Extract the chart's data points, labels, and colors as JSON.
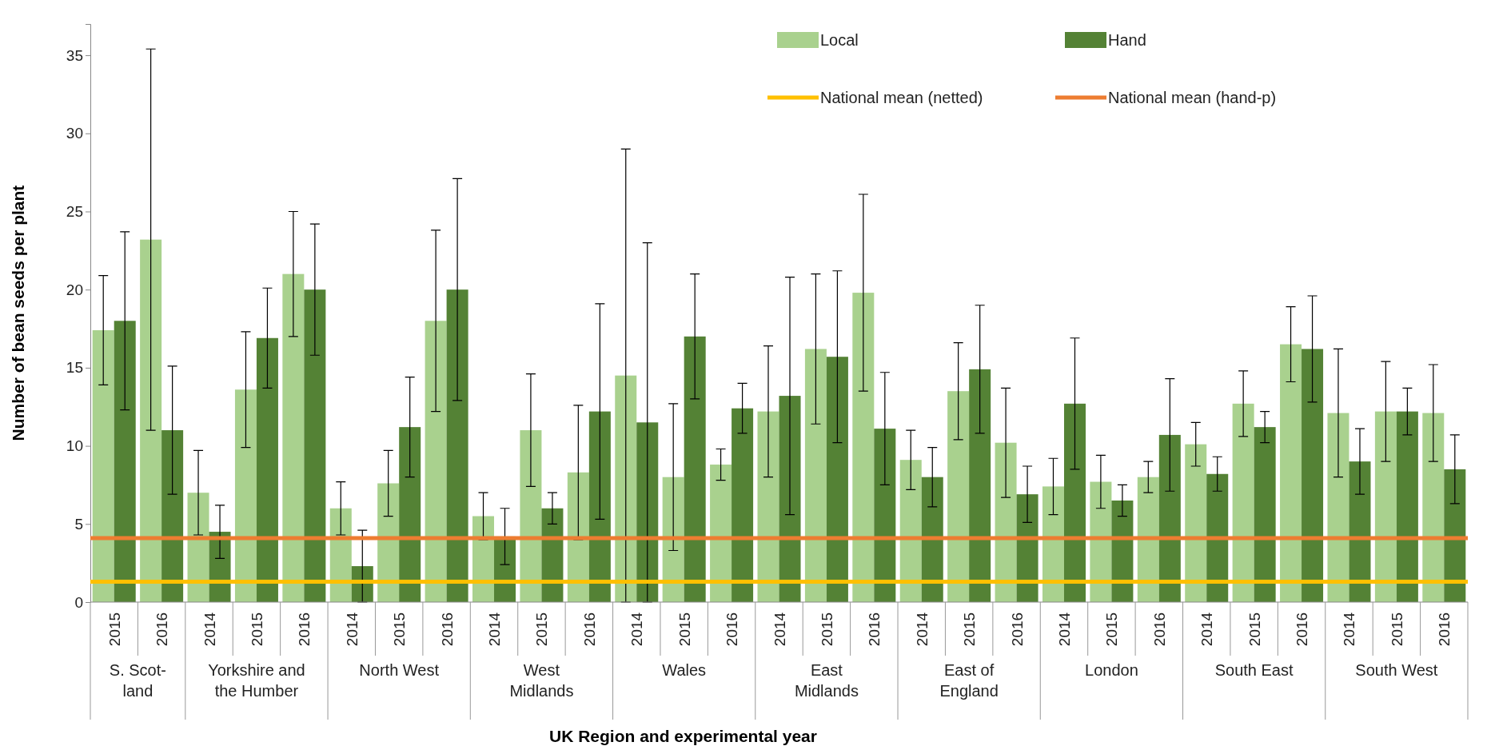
{
  "chart_data": {
    "type": "bar",
    "xlabel": "UK Region and experimental year",
    "ylabel": "Number of bean seeds per plant",
    "categories": [
      "2015",
      "2016",
      "2014",
      "2015",
      "2016",
      "2014",
      "2015",
      "2016",
      "2014",
      "2015",
      "2016",
      "2014",
      "2015",
      "2016",
      "2014",
      "2015",
      "2016",
      "2014",
      "2015",
      "2016",
      "2014",
      "2015",
      "2016",
      "2014",
      "2015",
      "2016",
      "2014",
      "2015",
      "2016"
    ],
    "annotations": [
      "S. Scot-\nland",
      "Yorkshire and\nthe Humber",
      "North West",
      "West\nMidlands",
      "Wales",
      "East\nMidlands",
      "East of\nEngland",
      "London",
      "South East",
      "South West"
    ],
    "series": [
      {
        "name": "Local",
        "color": "#a9d18e",
        "values": [
          17.4,
          23.2,
          7.0,
          13.6,
          21.0,
          6.0,
          7.6,
          18.0,
          5.5,
          11.0,
          8.3,
          14.5,
          8.0,
          8.8,
          12.2,
          16.2,
          19.8,
          9.1,
          13.5,
          10.2,
          7.4,
          7.7,
          8.0,
          10.1,
          12.7,
          16.5,
          12.1,
          12.2,
          12.1
        ],
        "errors": [
          3.5,
          12.2,
          2.7,
          3.7,
          4.0,
          1.7,
          2.1,
          5.8,
          1.5,
          3.6,
          4.3,
          14.5,
          4.7,
          1.0,
          4.2,
          4.8,
          6.3,
          1.9,
          3.1,
          3.5,
          1.8,
          1.7,
          1.0,
          1.4,
          2.1,
          2.4,
          4.1,
          3.2,
          3.1
        ]
      },
      {
        "name": "Hand",
        "color": "#548235",
        "values": [
          18.0,
          11.0,
          4.5,
          16.9,
          20.0,
          2.3,
          11.2,
          20.0,
          4.2,
          6.0,
          12.2,
          11.5,
          17.0,
          12.4,
          13.2,
          15.7,
          11.1,
          8.0,
          14.9,
          6.9,
          12.7,
          6.5,
          10.7,
          8.2,
          11.2,
          16.2,
          9.0,
          12.2,
          8.5
        ],
        "errors": [
          5.7,
          4.1,
          1.7,
          3.2,
          4.2,
          2.3,
          3.2,
          7.1,
          1.8,
          1.0,
          6.9,
          11.5,
          4.0,
          1.6,
          7.6,
          5.5,
          3.6,
          1.9,
          4.1,
          1.8,
          4.2,
          1.0,
          3.6,
          1.1,
          1.0,
          3.4,
          2.1,
          1.5,
          2.2
        ]
      }
    ],
    "ref_lines": [
      {
        "axis": "y",
        "value": 1.3,
        "label": "National mean (netted)",
        "color": "#ffc000"
      },
      {
        "axis": "y",
        "value": 4.1,
        "label": "National mean (hand-p)",
        "color": "#ed7d31"
      }
    ],
    "ylim": [
      0,
      37
    ],
    "yticks": [
      0,
      5,
      10,
      15,
      20,
      25,
      30,
      35
    ],
    "grid": false,
    "legend": "top right"
  }
}
